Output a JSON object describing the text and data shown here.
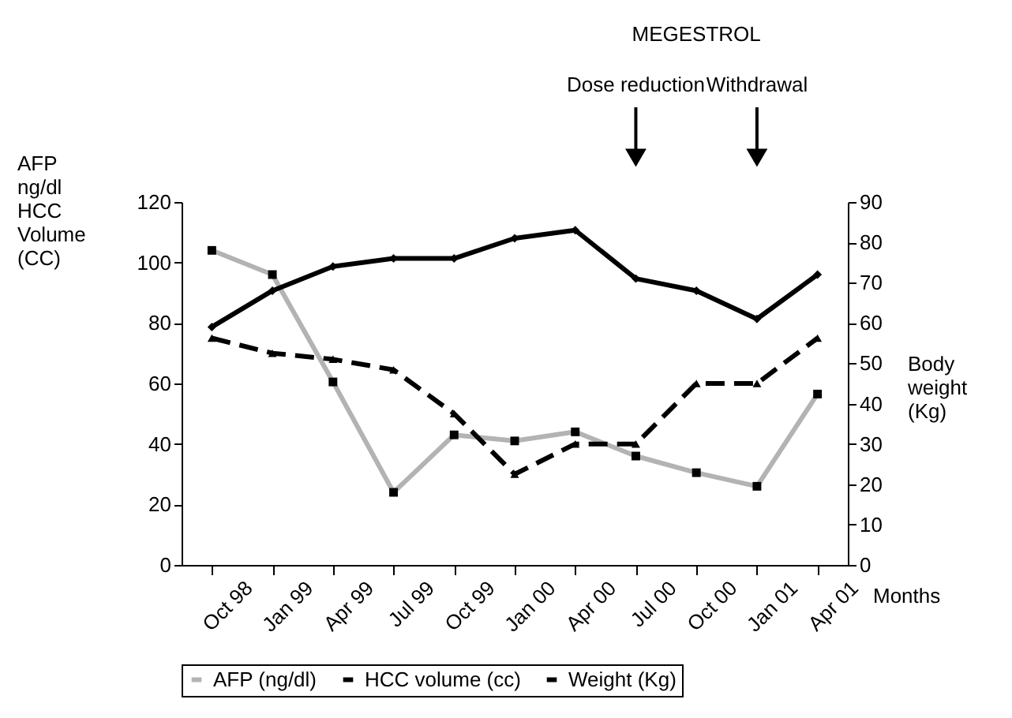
{
  "chart_data": {
    "type": "line",
    "xlabel": "Months",
    "ylabel": "AFP\nng/dl\n\nHCC\nVolume\n(CC)",
    "y2label": "Body\nweight\n(Kg)",
    "categories": [
      "Oct 98",
      "Jan 99",
      "Apr 99",
      "Jul 99",
      "Oct 99",
      "Jan 00",
      "Apr 00",
      "Jul 00",
      "Oct 00",
      "Jan 01",
      "Apr 01"
    ],
    "series": [
      {
        "name": "AFP (ng/dl)",
        "color": "#b3b3b3",
        "marker": "square",
        "line_style": "solid",
        "values": [
          104,
          96,
          60.5,
          24,
          43,
          41,
          44,
          36,
          30.5,
          26,
          56.5
        ]
      },
      {
        "name": "HCC volume (cc)",
        "color": "#000000",
        "marker": "triangle",
        "line_style": "dashed",
        "values": [
          75,
          70,
          68,
          64.5,
          50,
          30,
          40,
          40,
          60,
          60,
          75
        ]
      },
      {
        "name": "Weight (Kg)",
        "color": "#000000",
        "marker": "diamond",
        "line_style": "solid",
        "axis": "y2",
        "values": [
          59,
          68,
          74,
          76,
          76,
          81,
          83,
          71,
          68,
          61,
          72
        ]
      }
    ],
    "ylim": [
      0,
      120
    ],
    "yticks": [
      0,
      20,
      40,
      60,
      80,
      100,
      120
    ],
    "y2lim": [
      0,
      90
    ],
    "y2ticks": [
      0,
      10,
      20,
      30,
      40,
      50,
      60,
      70,
      80,
      90
    ],
    "grid": false,
    "legend": "bottom",
    "annotations": [
      "MEGESTROL",
      {
        "text": "Dose reduction",
        "x": "Jul 00"
      },
      {
        "text": "Withdrawal",
        "x": "Jan 01"
      }
    ]
  }
}
